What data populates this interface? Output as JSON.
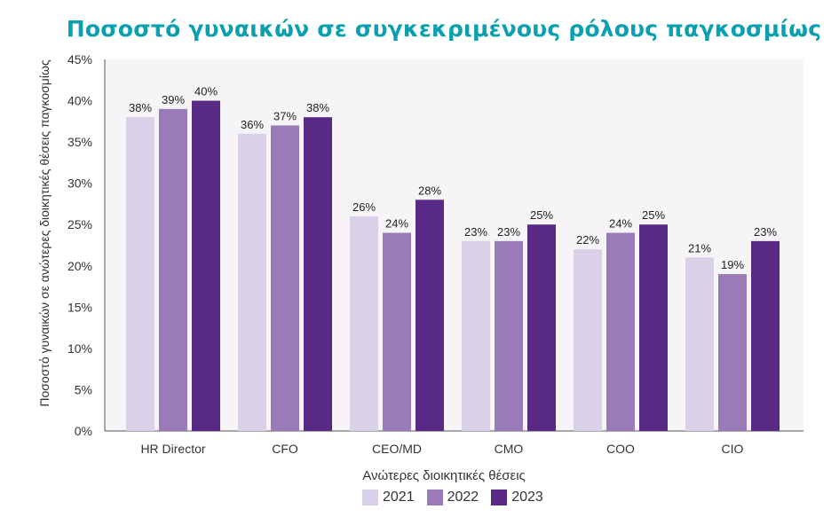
{
  "chart_data": {
    "type": "bar",
    "title": "Ποσοστό γυναικών σε συγκεκριμένους ρόλους παγκοσμίως",
    "xlabel": "Ανώτερες διοικητικές θέσεις",
    "ylabel": "Ποσοστό γυναικών σε ανώτερες διοικητικές θέσεις παγκοσμίως",
    "ylim": [
      0,
      45
    ],
    "yticks": [
      "0%",
      "5%",
      "10%",
      "15%",
      "20%",
      "25%",
      "30%",
      "35%",
      "40%",
      "45%"
    ],
    "categories": [
      "HR Director",
      "CFO",
      "CEO/MD",
      "CMO",
      "COO",
      "CIO"
    ],
    "series": [
      {
        "name": "2021",
        "color": "#d9d1e8",
        "values": [
          38,
          36,
          26,
          23,
          22,
          21
        ]
      },
      {
        "name": "2022",
        "color": "#9a7bb8",
        "values": [
          39,
          37,
          24,
          23,
          24,
          19
        ]
      },
      {
        "name": "2023",
        "color": "#582a86",
        "values": [
          40,
          38,
          28,
          25,
          25,
          23
        ]
      }
    ],
    "grid": false,
    "legend": "bottom",
    "plot_background": "#f7f4f7"
  }
}
